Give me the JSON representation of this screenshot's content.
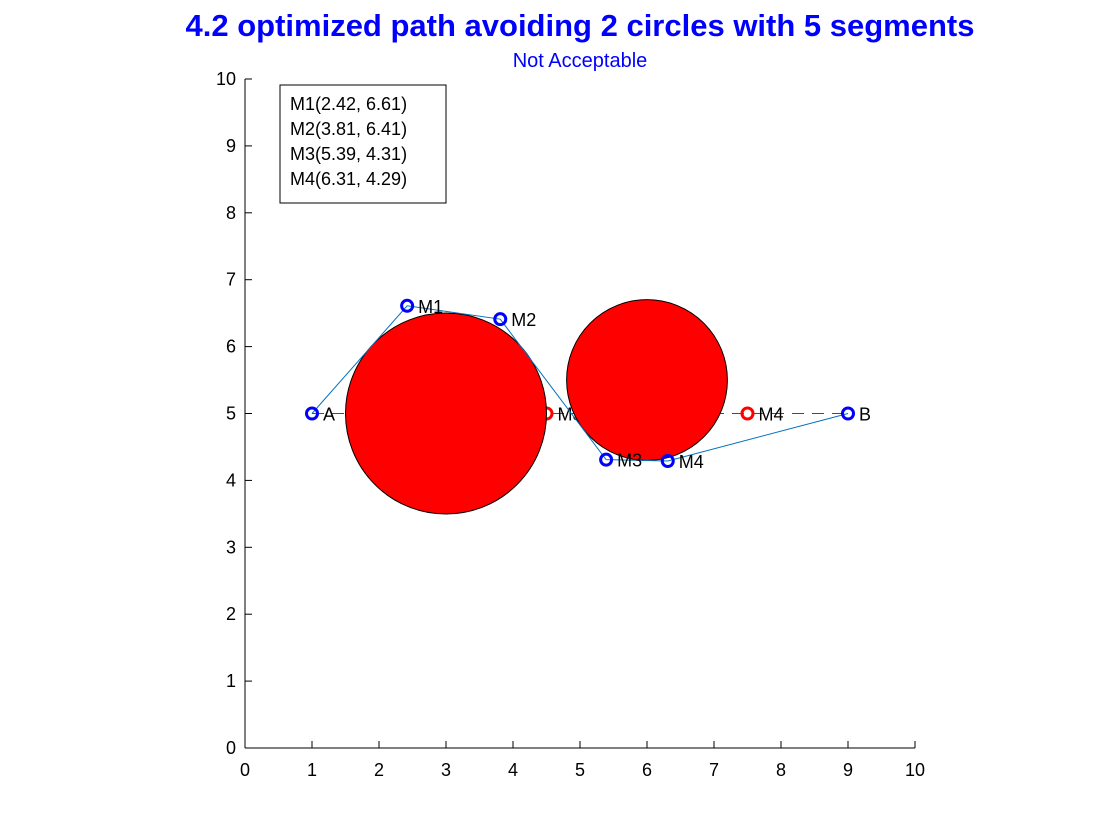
{
  "chart_data": {
    "type": "scatter",
    "title": "4.2 optimized path avoiding 2 circles with 5 segments",
    "subtitle": "Not Acceptable",
    "xlim": [
      0,
      10
    ],
    "ylim": [
      0,
      10
    ],
    "xticks": [
      "0",
      "1",
      "2",
      "3",
      "4",
      "5",
      "6",
      "7",
      "8",
      "9",
      "10"
    ],
    "yticks": [
      "0",
      "1",
      "2",
      "3",
      "4",
      "5",
      "6",
      "7",
      "8",
      "9",
      "10"
    ],
    "grid": false,
    "legend_position": "top-left",
    "legend": [
      "M1(2.42, 6.61)",
      "M2(3.81, 6.41)",
      "M3(5.39, 4.31)",
      "M4(6.31, 4.29)"
    ],
    "obstacles": [
      {
        "cx": 3,
        "cy": 5,
        "r": 1.5,
        "color": "#ff0000"
      },
      {
        "cx": 6,
        "cy": 5.5,
        "r": 1.2,
        "color": "#ff0000"
      }
    ],
    "initial_path": {
      "color": "#ff0000",
      "points": [
        {
          "label": "A",
          "x": 1,
          "y": 5
        },
        {
          "label": "M1",
          "x": 2.5,
          "y": 5
        },
        {
          "label": "M2",
          "x": 4,
          "y": 5
        },
        {
          "label": "M3",
          "x": 4.5,
          "y": 5
        },
        {
          "label": "M4",
          "x": 7.5,
          "y": 5
        },
        {
          "label": "B",
          "x": 9,
          "y": 5
        }
      ],
      "markers": [
        {
          "label": "M3",
          "x": 4.5,
          "y": 5
        },
        {
          "label": "M4",
          "x": 7.5,
          "y": 5
        }
      ]
    },
    "optimized_path": {
      "line_color": "#0072bd",
      "marker_color": "#0000ff",
      "points": [
        {
          "label": "A",
          "x": 1,
          "y": 5
        },
        {
          "label": "M1",
          "x": 2.42,
          "y": 6.61
        },
        {
          "label": "M2",
          "x": 3.81,
          "y": 6.41
        },
        {
          "label": "M3",
          "x": 5.39,
          "y": 4.31
        },
        {
          "label": "M4",
          "x": 6.31,
          "y": 4.29
        },
        {
          "label": "B",
          "x": 9,
          "y": 5
        }
      ]
    }
  }
}
